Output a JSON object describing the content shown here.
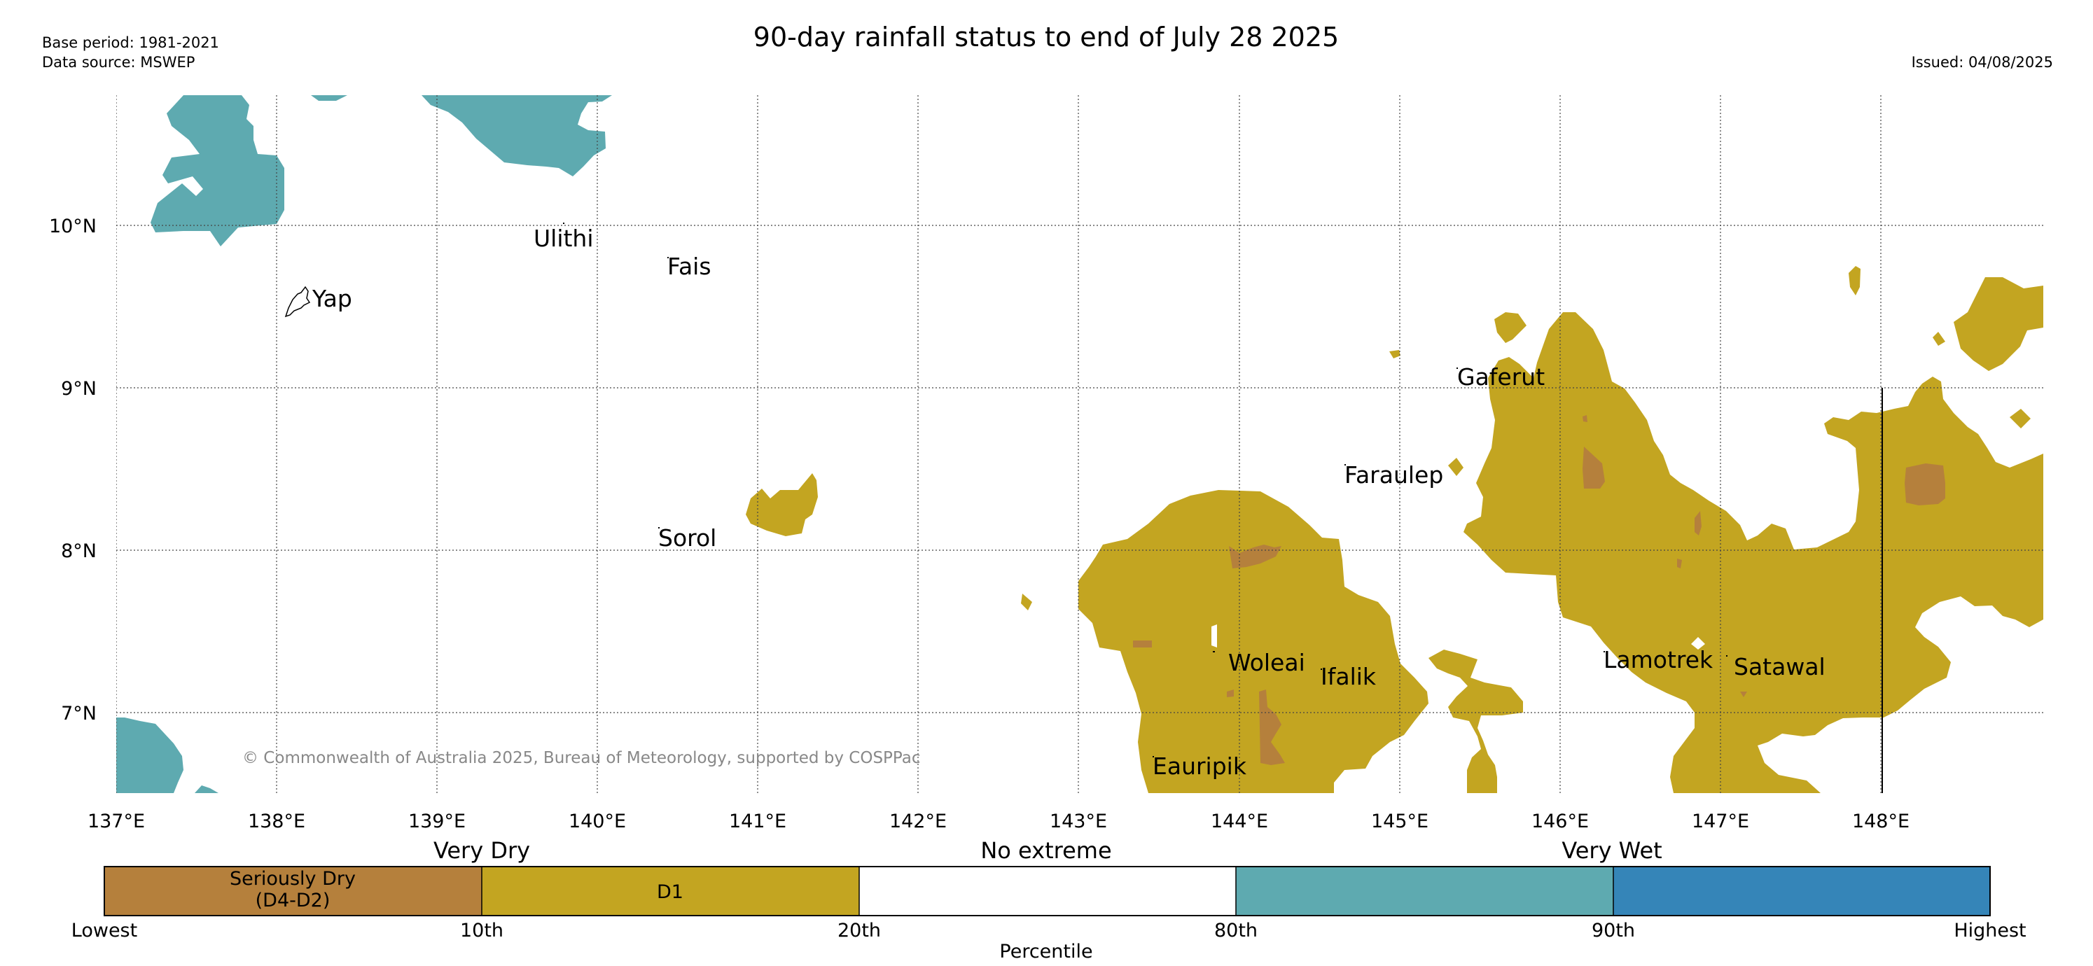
{
  "header": {
    "title": "90-day rainfall status to end of July 28 2025",
    "base_period": "Base period: 1981-2021",
    "data_source": "Data source: MSWEP",
    "issued": "Issued: 04/08/2025"
  },
  "map": {
    "lon_ticks": [
      "137°E",
      "138°E",
      "139°E",
      "140°E",
      "141°E",
      "142°E",
      "143°E",
      "144°E",
      "145°E",
      "146°E",
      "147°E",
      "148°E"
    ],
    "lat_ticks": [
      "10°N",
      "9°N",
      "8°N",
      "7°N"
    ],
    "places": [
      {
        "id": "yap",
        "name": "Yap"
      },
      {
        "id": "ulithi",
        "name": "Ulithi"
      },
      {
        "id": "fais",
        "name": "Fais"
      },
      {
        "id": "sorol",
        "name": "Sorol"
      },
      {
        "id": "gaferut",
        "name": "Gaferut"
      },
      {
        "id": "faraulep",
        "name": "Faraulep"
      },
      {
        "id": "woleai",
        "name": "Woleai"
      },
      {
        "id": "ifalik",
        "name": "Ifalik"
      },
      {
        "id": "eauripik",
        "name": "Eauripik"
      },
      {
        "id": "lamotrek",
        "name": "Lamotrek"
      },
      {
        "id": "satawal",
        "name": "Satawal"
      }
    ],
    "copyright": "© Commonwealth of Australia 2025, Bureau of Meteorology, supported by COSPPac",
    "colors": {
      "seriously_dry": "#b5803c",
      "d1": "#c3a521",
      "very_wet_80_90": "#5eaab0",
      "very_wet_90_high": "#3585b8",
      "no_extreme": "#ffffff"
    }
  },
  "legend": {
    "groups": [
      "Very Dry",
      "No extreme",
      "Very Wet"
    ],
    "segments": [
      {
        "label_line1": "Seriously Dry",
        "label_line2": "(D4-D2)",
        "color": "#b5803c"
      },
      {
        "label_line1": "D1",
        "label_line2": "",
        "color": "#c3a521"
      },
      {
        "label_line1": "",
        "label_line2": "",
        "color": "#ffffff"
      },
      {
        "label_line1": "",
        "label_line2": "",
        "color": "#5eaab0"
      },
      {
        "label_line1": "",
        "label_line2": "",
        "color": "#3585b8"
      }
    ],
    "ticks": [
      "Lowest",
      "10th",
      "20th",
      "80th",
      "90th",
      "Highest"
    ],
    "axis_title": "Percentile"
  }
}
